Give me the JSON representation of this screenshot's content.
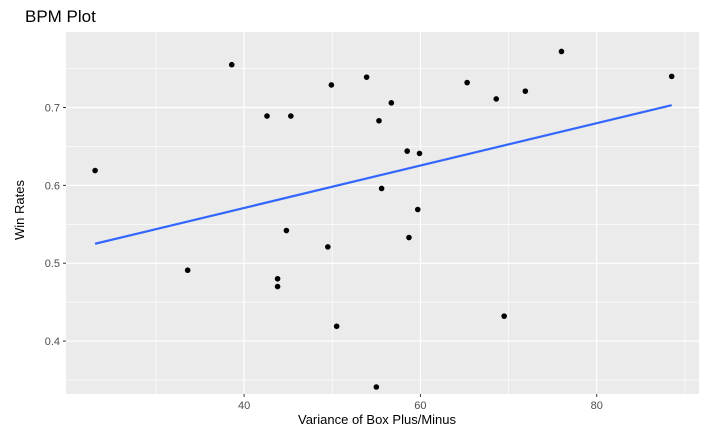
{
  "chart_data": {
    "type": "scatter",
    "title": "BPM Plot",
    "xlabel": "Variance of Box Plus/Minus",
    "ylabel": "Win Rates",
    "xlim": [
      19.8,
      91.6
    ],
    "ylim": [
      0.332,
      0.797
    ],
    "xticks": [
      40,
      60,
      80
    ],
    "yticks": [
      0.4,
      0.5,
      0.6,
      0.7
    ],
    "ytick_labels": [
      "0.4",
      "0.5",
      "0.6",
      "0.7"
    ],
    "grid": true,
    "legend": "none",
    "colors": {
      "panel": "#ebebeb",
      "grid": "#ffffff",
      "points": "#000000",
      "trend": "#3366ff"
    },
    "points": [
      {
        "x": 23.1,
        "y": 0.619
      },
      {
        "x": 33.6,
        "y": 0.491
      },
      {
        "x": 38.6,
        "y": 0.755
      },
      {
        "x": 42.6,
        "y": 0.689
      },
      {
        "x": 43.8,
        "y": 0.48
      },
      {
        "x": 43.8,
        "y": 0.47
      },
      {
        "x": 44.8,
        "y": 0.542
      },
      {
        "x": 45.3,
        "y": 0.689
      },
      {
        "x": 49.5,
        "y": 0.521
      },
      {
        "x": 49.9,
        "y": 0.729
      },
      {
        "x": 50.5,
        "y": 0.419
      },
      {
        "x": 53.9,
        "y": 0.739
      },
      {
        "x": 55.0,
        "y": 0.341
      },
      {
        "x": 55.3,
        "y": 0.683
      },
      {
        "x": 55.6,
        "y": 0.596
      },
      {
        "x": 56.7,
        "y": 0.706
      },
      {
        "x": 58.5,
        "y": 0.644
      },
      {
        "x": 58.7,
        "y": 0.533
      },
      {
        "x": 59.7,
        "y": 0.569
      },
      {
        "x": 59.9,
        "y": 0.641
      },
      {
        "x": 65.3,
        "y": 0.732
      },
      {
        "x": 68.6,
        "y": 0.711
      },
      {
        "x": 69.5,
        "y": 0.432
      },
      {
        "x": 71.9,
        "y": 0.721
      },
      {
        "x": 76.0,
        "y": 0.772
      },
      {
        "x": 88.5,
        "y": 0.74
      }
    ],
    "trend_line": {
      "x": [
        23.1,
        88.5
      ],
      "y": [
        0.525,
        0.703
      ]
    }
  }
}
